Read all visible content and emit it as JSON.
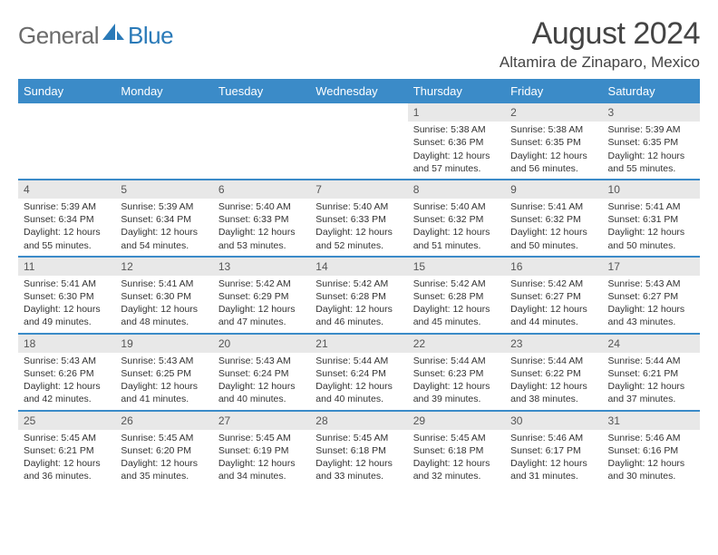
{
  "logo": {
    "general": "General",
    "blue": "Blue"
  },
  "title": "August 2024",
  "location": "Altamira de Zinaparo, Mexico",
  "colors": {
    "header_bg": "#3b8bc8",
    "header_text": "#ffffff",
    "daynum_bg": "#e8e8e8",
    "body_text": "#333333",
    "logo_gray": "#6b6b6b",
    "logo_blue": "#2a7ab8"
  },
  "day_headers": [
    "Sunday",
    "Monday",
    "Tuesday",
    "Wednesday",
    "Thursday",
    "Friday",
    "Saturday"
  ],
  "weeks": [
    [
      {
        "empty": true
      },
      {
        "empty": true
      },
      {
        "empty": true
      },
      {
        "empty": true
      },
      {
        "n": "1",
        "sunrise": "5:38 AM",
        "sunset": "6:36 PM",
        "daylight": "12 hours and 57 minutes."
      },
      {
        "n": "2",
        "sunrise": "5:38 AM",
        "sunset": "6:35 PM",
        "daylight": "12 hours and 56 minutes."
      },
      {
        "n": "3",
        "sunrise": "5:39 AM",
        "sunset": "6:35 PM",
        "daylight": "12 hours and 55 minutes."
      }
    ],
    [
      {
        "n": "4",
        "sunrise": "5:39 AM",
        "sunset": "6:34 PM",
        "daylight": "12 hours and 55 minutes."
      },
      {
        "n": "5",
        "sunrise": "5:39 AM",
        "sunset": "6:34 PM",
        "daylight": "12 hours and 54 minutes."
      },
      {
        "n": "6",
        "sunrise": "5:40 AM",
        "sunset": "6:33 PM",
        "daylight": "12 hours and 53 minutes."
      },
      {
        "n": "7",
        "sunrise": "5:40 AM",
        "sunset": "6:33 PM",
        "daylight": "12 hours and 52 minutes."
      },
      {
        "n": "8",
        "sunrise": "5:40 AM",
        "sunset": "6:32 PM",
        "daylight": "12 hours and 51 minutes."
      },
      {
        "n": "9",
        "sunrise": "5:41 AM",
        "sunset": "6:32 PM",
        "daylight": "12 hours and 50 minutes."
      },
      {
        "n": "10",
        "sunrise": "5:41 AM",
        "sunset": "6:31 PM",
        "daylight": "12 hours and 50 minutes."
      }
    ],
    [
      {
        "n": "11",
        "sunrise": "5:41 AM",
        "sunset": "6:30 PM",
        "daylight": "12 hours and 49 minutes."
      },
      {
        "n": "12",
        "sunrise": "5:41 AM",
        "sunset": "6:30 PM",
        "daylight": "12 hours and 48 minutes."
      },
      {
        "n": "13",
        "sunrise": "5:42 AM",
        "sunset": "6:29 PM",
        "daylight": "12 hours and 47 minutes."
      },
      {
        "n": "14",
        "sunrise": "5:42 AM",
        "sunset": "6:28 PM",
        "daylight": "12 hours and 46 minutes."
      },
      {
        "n": "15",
        "sunrise": "5:42 AM",
        "sunset": "6:28 PM",
        "daylight": "12 hours and 45 minutes."
      },
      {
        "n": "16",
        "sunrise": "5:42 AM",
        "sunset": "6:27 PM",
        "daylight": "12 hours and 44 minutes."
      },
      {
        "n": "17",
        "sunrise": "5:43 AM",
        "sunset": "6:27 PM",
        "daylight": "12 hours and 43 minutes."
      }
    ],
    [
      {
        "n": "18",
        "sunrise": "5:43 AM",
        "sunset": "6:26 PM",
        "daylight": "12 hours and 42 minutes."
      },
      {
        "n": "19",
        "sunrise": "5:43 AM",
        "sunset": "6:25 PM",
        "daylight": "12 hours and 41 minutes."
      },
      {
        "n": "20",
        "sunrise": "5:43 AM",
        "sunset": "6:24 PM",
        "daylight": "12 hours and 40 minutes."
      },
      {
        "n": "21",
        "sunrise": "5:44 AM",
        "sunset": "6:24 PM",
        "daylight": "12 hours and 40 minutes."
      },
      {
        "n": "22",
        "sunrise": "5:44 AM",
        "sunset": "6:23 PM",
        "daylight": "12 hours and 39 minutes."
      },
      {
        "n": "23",
        "sunrise": "5:44 AM",
        "sunset": "6:22 PM",
        "daylight": "12 hours and 38 minutes."
      },
      {
        "n": "24",
        "sunrise": "5:44 AM",
        "sunset": "6:21 PM",
        "daylight": "12 hours and 37 minutes."
      }
    ],
    [
      {
        "n": "25",
        "sunrise": "5:45 AM",
        "sunset": "6:21 PM",
        "daylight": "12 hours and 36 minutes."
      },
      {
        "n": "26",
        "sunrise": "5:45 AM",
        "sunset": "6:20 PM",
        "daylight": "12 hours and 35 minutes."
      },
      {
        "n": "27",
        "sunrise": "5:45 AM",
        "sunset": "6:19 PM",
        "daylight": "12 hours and 34 minutes."
      },
      {
        "n": "28",
        "sunrise": "5:45 AM",
        "sunset": "6:18 PM",
        "daylight": "12 hours and 33 minutes."
      },
      {
        "n": "29",
        "sunrise": "5:45 AM",
        "sunset": "6:18 PM",
        "daylight": "12 hours and 32 minutes."
      },
      {
        "n": "30",
        "sunrise": "5:46 AM",
        "sunset": "6:17 PM",
        "daylight": "12 hours and 31 minutes."
      },
      {
        "n": "31",
        "sunrise": "5:46 AM",
        "sunset": "6:16 PM",
        "daylight": "12 hours and 30 minutes."
      }
    ]
  ],
  "labels": {
    "sunrise": "Sunrise: ",
    "sunset": "Sunset: ",
    "daylight": "Daylight: "
  }
}
